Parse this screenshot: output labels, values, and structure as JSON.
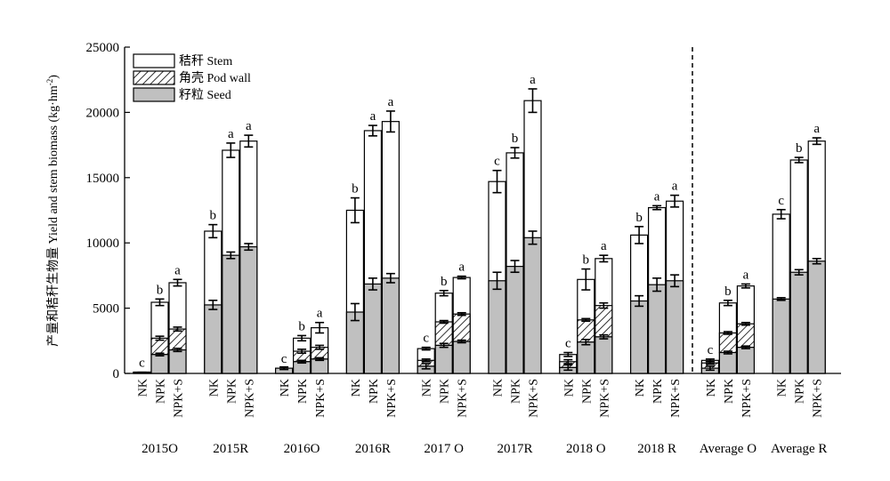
{
  "chart_data": {
    "type": "bar",
    "stacked": true,
    "ylabel": "产量和秸秆生物量 Yield and stem biomass (kg·hm",
    "ylabel_sup": "-2",
    "ylabel_close": ")",
    "ylim": [
      0,
      25000
    ],
    "yticks": [
      0,
      5000,
      10000,
      15000,
      20000,
      25000
    ],
    "legend_position": "top-left",
    "legend": [
      {
        "key": "stem",
        "label": "秸秆 Stem",
        "fill": "#ffffff",
        "pattern": "none"
      },
      {
        "key": "pod",
        "label": "角壳 Pod wall",
        "fill": "#ffffff",
        "pattern": "hatch"
      },
      {
        "key": "seed",
        "label": "籽粒 Seed",
        "fill": "#c0c0c0",
        "pattern": "none"
      }
    ],
    "treatments": [
      "NK",
      "NPK",
      "NPK+S"
    ],
    "has_divider_before_group": 8,
    "groups": [
      {
        "label": "2015O",
        "bars": [
          {
            "seed": 60,
            "seed_err": 30,
            "pod_top": 100,
            "pod_err": 0,
            "total": 100,
            "total_err": 0,
            "letter": "c"
          },
          {
            "seed": 1450,
            "seed_err": 100,
            "pod_top": 2700,
            "pod_err": 150,
            "total": 5450,
            "total_err": 250,
            "letter": "b"
          },
          {
            "seed": 1800,
            "seed_err": 120,
            "pod_top": 3400,
            "pod_err": 150,
            "total": 6950,
            "total_err": 250,
            "letter": "a"
          }
        ]
      },
      {
        "label": "2015R",
        "bars": [
          {
            "seed": 5250,
            "seed_err": 350,
            "pod_top": 5250,
            "pod_err": 0,
            "total": 10900,
            "total_err": 500,
            "letter": "b"
          },
          {
            "seed": 9050,
            "seed_err": 250,
            "pod_top": 9050,
            "pod_err": 0,
            "total": 17100,
            "total_err": 550,
            "letter": "a"
          },
          {
            "seed": 9700,
            "seed_err": 250,
            "pod_top": 9700,
            "pod_err": 0,
            "total": 17800,
            "total_err": 450,
            "letter": "a"
          }
        ]
      },
      {
        "label": "2016O",
        "bars": [
          {
            "seed": 400,
            "seed_err": 100,
            "pod_top": 400,
            "pod_err": 0,
            "total": 400,
            "total_err": 0,
            "letter": "c"
          },
          {
            "seed": 900,
            "seed_err": 100,
            "pod_top": 1700,
            "pod_err": 150,
            "total": 2700,
            "total_err": 200,
            "letter": "b"
          },
          {
            "seed": 1100,
            "seed_err": 100,
            "pod_top": 2000,
            "pod_err": 150,
            "total": 3500,
            "total_err": 400,
            "letter": "a"
          }
        ]
      },
      {
        "label": "2016R",
        "bars": [
          {
            "seed": 4700,
            "seed_err": 650,
            "pod_top": 4700,
            "pod_err": 0,
            "total": 12500,
            "total_err": 950,
            "letter": "b"
          },
          {
            "seed": 6850,
            "seed_err": 450,
            "pod_top": 6850,
            "pod_err": 0,
            "total": 18600,
            "total_err": 400,
            "letter": "a"
          },
          {
            "seed": 7300,
            "seed_err": 350,
            "pod_top": 7300,
            "pod_err": 0,
            "total": 19300,
            "total_err": 800,
            "letter": "a"
          }
        ]
      },
      {
        "label": "2017 O",
        "bars": [
          {
            "seed": 550,
            "seed_err": 200,
            "pod_top": 1000,
            "pod_err": 100,
            "total": 1900,
            "total_err": 100,
            "letter": "c"
          },
          {
            "seed": 2150,
            "seed_err": 150,
            "pod_top": 3950,
            "pod_err": 100,
            "total": 6150,
            "total_err": 200,
            "letter": "b"
          },
          {
            "seed": 2450,
            "seed_err": 100,
            "pod_top": 4550,
            "pod_err": 100,
            "total": 7350,
            "total_err": 100,
            "letter": "a"
          }
        ]
      },
      {
        "label": "2017R",
        "bars": [
          {
            "seed": 7100,
            "seed_err": 650,
            "pod_top": 7100,
            "pod_err": 0,
            "total": 14700,
            "total_err": 850,
            "letter": "c"
          },
          {
            "seed": 8200,
            "seed_err": 450,
            "pod_top": 8200,
            "pod_err": 0,
            "total": 16900,
            "total_err": 400,
            "letter": "b"
          },
          {
            "seed": 10400,
            "seed_err": 500,
            "pod_top": 10400,
            "pod_err": 0,
            "total": 20900,
            "total_err": 900,
            "letter": "a"
          }
        ]
      },
      {
        "label": "2018 O",
        "bars": [
          {
            "seed": 450,
            "seed_err": 200,
            "pod_top": 900,
            "pod_err": 150,
            "total": 1450,
            "total_err": 150,
            "letter": "c"
          },
          {
            "seed": 2400,
            "seed_err": 200,
            "pod_top": 4100,
            "pod_err": 100,
            "total": 7200,
            "total_err": 800,
            "letter": "b"
          },
          {
            "seed": 2800,
            "seed_err": 150,
            "pod_top": 5200,
            "pod_err": 200,
            "total": 8800,
            "total_err": 250,
            "letter": "a"
          }
        ]
      },
      {
        "label": "2018 R",
        "bars": [
          {
            "seed": 5550,
            "seed_err": 400,
            "pod_top": 5550,
            "pod_err": 0,
            "total": 10600,
            "total_err": 650,
            "letter": "b"
          },
          {
            "seed": 6800,
            "seed_err": 500,
            "pod_top": 6800,
            "pod_err": 0,
            "total": 12700,
            "total_err": 150,
            "letter": "a"
          },
          {
            "seed": 7100,
            "seed_err": 450,
            "pod_top": 7100,
            "pod_err": 0,
            "total": 13200,
            "total_err": 450,
            "letter": "a"
          }
        ]
      },
      {
        "label": "Average O",
        "bars": [
          {
            "seed": 400,
            "seed_err": 150,
            "pod_top": 800,
            "pod_err": 100,
            "total": 1000,
            "total_err": 100,
            "letter": "c"
          },
          {
            "seed": 1600,
            "seed_err": 100,
            "pod_top": 3100,
            "pod_err": 100,
            "total": 5400,
            "total_err": 200,
            "letter": "b"
          },
          {
            "seed": 2000,
            "seed_err": 100,
            "pod_top": 3800,
            "pod_err": 100,
            "total": 6700,
            "total_err": 150,
            "letter": "a"
          }
        ]
      },
      {
        "label": "Average  R",
        "bars": [
          {
            "seed": 5700,
            "seed_err": 100,
            "pod_top": 5700,
            "pod_err": 0,
            "total": 12200,
            "total_err": 350,
            "letter": "c"
          },
          {
            "seed": 7750,
            "seed_err": 200,
            "pod_top": 7750,
            "pod_err": 0,
            "total": 16350,
            "total_err": 200,
            "letter": "b"
          },
          {
            "seed": 8600,
            "seed_err": 200,
            "pod_top": 8600,
            "pod_err": 0,
            "total": 17800,
            "total_err": 250,
            "letter": "a"
          }
        ]
      }
    ]
  }
}
